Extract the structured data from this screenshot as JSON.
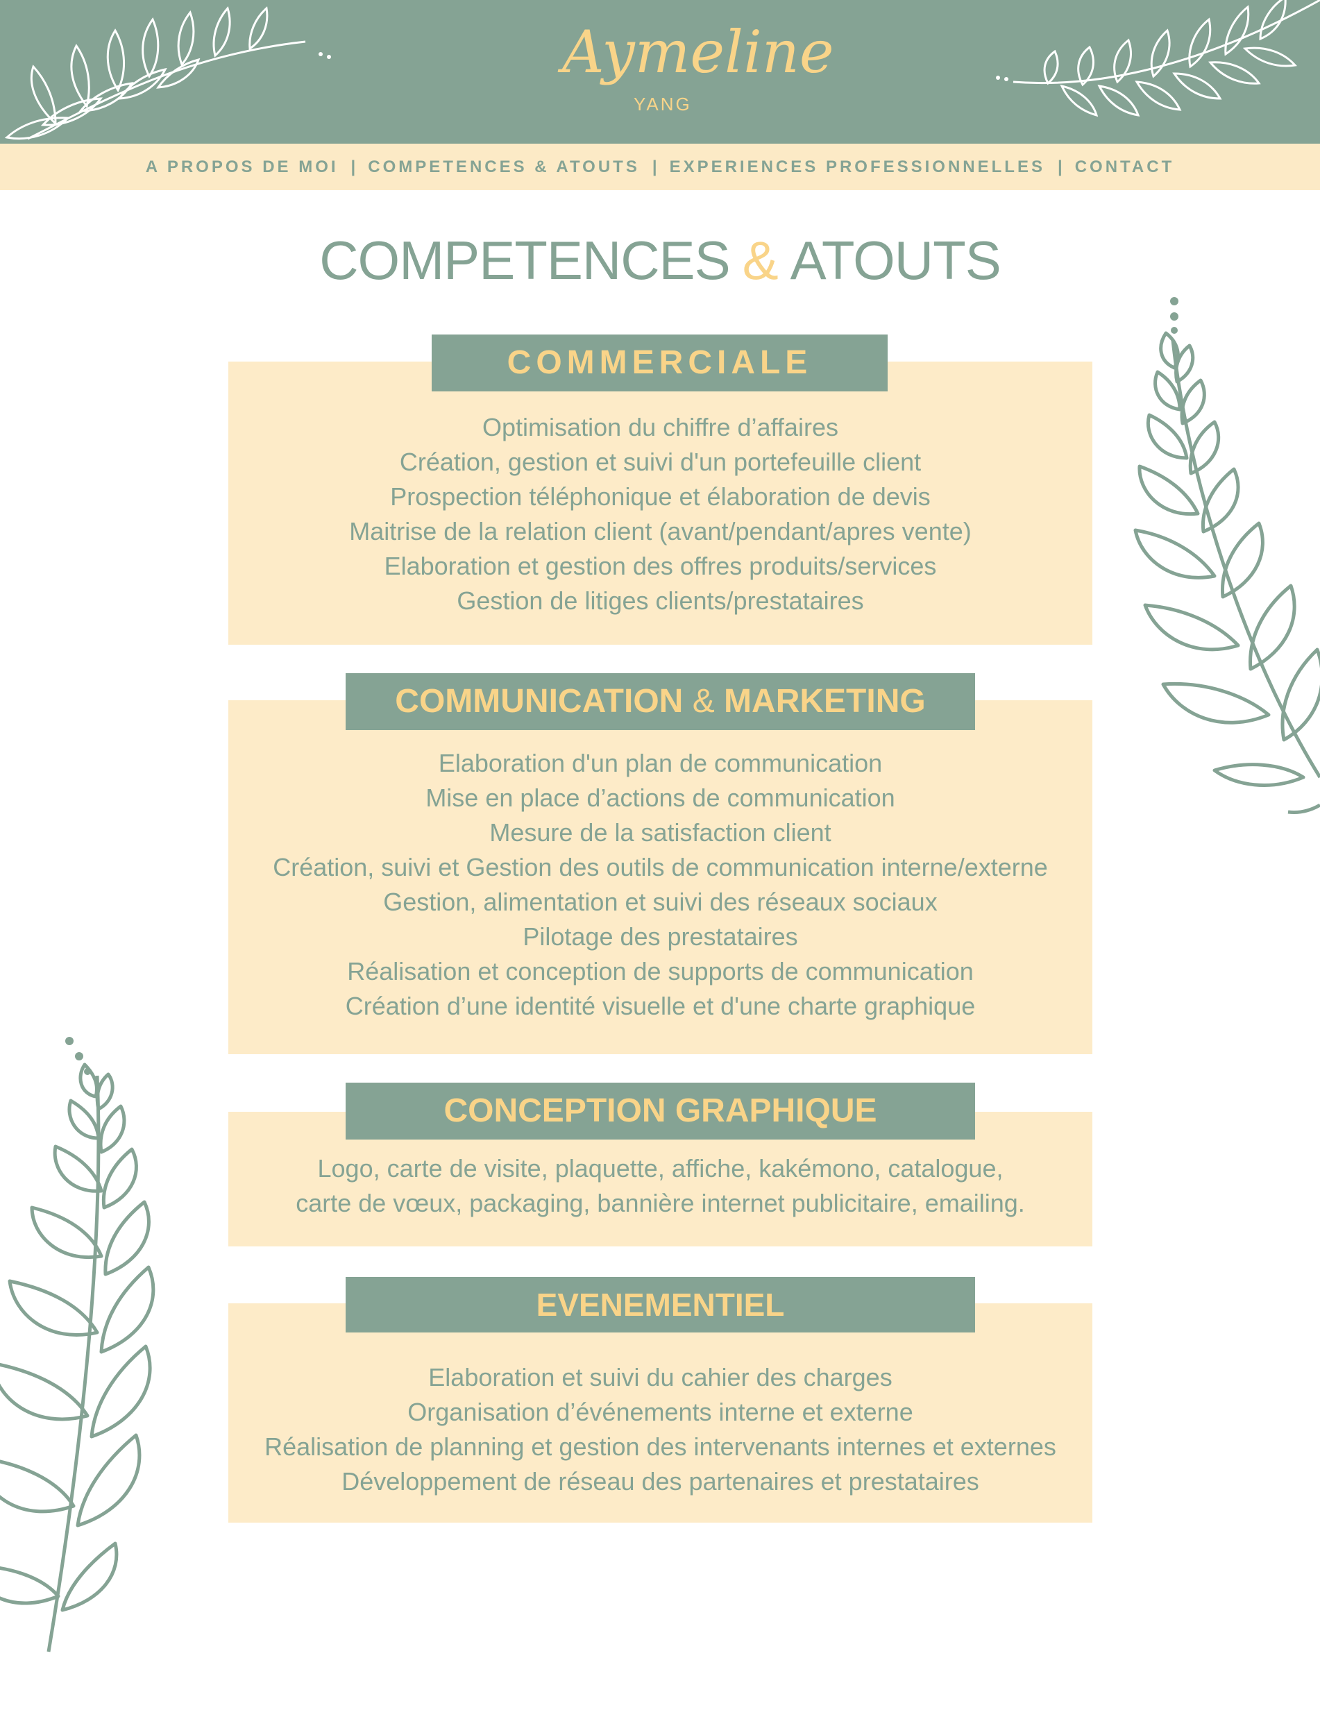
{
  "colors": {
    "sage": "#85a394",
    "cream": "#fdebc8",
    "gold": "#f9d489"
  },
  "header": {
    "logo_script": "Aymeline",
    "logo_sub": "YANG",
    "nav": [
      {
        "label": "A PROPOS DE MOI"
      },
      {
        "label": "COMPETENCES & ATOUTS"
      },
      {
        "label": "EXPERIENCES PROFESSIONNELLES"
      },
      {
        "label": "CONTACT"
      }
    ],
    "separator": "|"
  },
  "page_title": {
    "part1": "COMPETENCES",
    "amp": "&",
    "part2": "ATOUTS"
  },
  "sections": [
    {
      "title": "COMMERCIALE",
      "items": [
        "Optimisation du chiffre d’affaires",
        "Création, gestion et suivi d'un portefeuille client",
        "Prospection téléphonique et élaboration de devis",
        "Maitrise de la relation client (avant/pendant/apres vente)",
        "Elaboration et gestion des offres produits/services",
        "Gestion de litiges clients/prestataires"
      ]
    },
    {
      "title_part1": "COMMUNICATION",
      "title_amp": "&",
      "title_part2": "MARKETING",
      "items": [
        "Elaboration d'un plan de communication",
        "Mise en place d’actions de communication",
        "Mesure de la satisfaction client",
        "Création, suivi et Gestion des outils de communication interne/externe",
        "Gestion, alimentation et suivi des réseaux sociaux",
        "Pilotage des prestataires",
        "Réalisation et conception de supports de communication",
        "Création d’une identité visuelle et d'une charte graphique"
      ]
    },
    {
      "title": "CONCEPTION GRAPHIQUE",
      "items": [
        "Logo, carte de visite, plaquette, affiche, kakémono, catalogue,",
        "carte de vœux, packaging, bannière internet publicitaire, emailing."
      ]
    },
    {
      "title": "EVENEMENTIEL",
      "items": [
        "Elaboration et suivi du cahier des charges",
        "Organisation d’événements interne et externe",
        "Réalisation de planning et gestion des intervenants internes et externes",
        "Développement de réseau des partenaires et prestataires"
      ]
    }
  ]
}
